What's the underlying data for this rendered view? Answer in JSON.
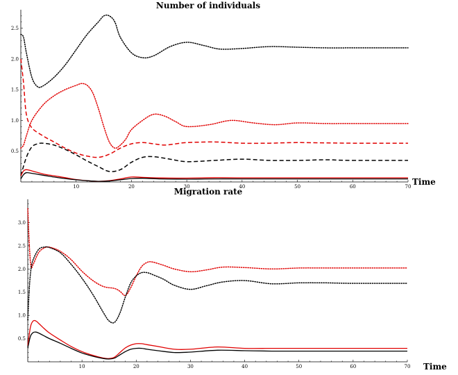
{
  "chart_data": [
    {
      "type": "line",
      "title": "Number of individuals",
      "xlabel": "Time",
      "ylabel": "",
      "xlim": [
        0,
        70
      ],
      "ylim": [
        0,
        2.8
      ],
      "x_ticks": [
        10,
        20,
        30,
        40,
        50,
        60,
        70
      ],
      "y_ticks": [
        0.5,
        1.0,
        1.5,
        2.0,
        2.5
      ],
      "x_tick_labels": [
        "10",
        "20",
        "30",
        "40",
        "50",
        "60",
        "70"
      ],
      "y_tick_labels": [
        "0.5",
        "1.0",
        "1.5",
        "2.0",
        "2.5"
      ],
      "grid": false,
      "series": [
        {
          "color": "#000000",
          "style": "dotted",
          "x": [
            0,
            0.5,
            1,
            2,
            3,
            4,
            6,
            8,
            10,
            12,
            14,
            15,
            16,
            17,
            18,
            20,
            22,
            24,
            27,
            30,
            33,
            36,
            40,
            45,
            50,
            55,
            60,
            65,
            70
          ],
          "y": [
            2.4,
            2.35,
            2.1,
            1.7,
            1.55,
            1.56,
            1.7,
            1.9,
            2.15,
            2.4,
            2.6,
            2.7,
            2.7,
            2.6,
            2.35,
            2.1,
            2.02,
            2.05,
            2.2,
            2.27,
            2.22,
            2.16,
            2.17,
            2.2,
            2.19,
            2.18,
            2.18,
            2.18,
            2.18
          ]
        },
        {
          "color": "#e00000",
          "style": "dotted",
          "x": [
            0,
            0.5,
            1,
            2,
            4,
            6,
            8,
            10,
            11,
            12,
            13,
            14,
            15,
            16,
            17,
            18,
            19,
            20,
            22,
            24,
            26,
            28,
            30,
            34,
            38,
            42,
            46,
            50,
            55,
            60,
            70
          ],
          "y": [
            0.55,
            0.6,
            0.75,
            1.0,
            1.25,
            1.4,
            1.5,
            1.57,
            1.6,
            1.57,
            1.45,
            1.2,
            0.9,
            0.65,
            0.55,
            0.6,
            0.7,
            0.85,
            1.0,
            1.1,
            1.07,
            0.98,
            0.9,
            0.93,
            1.0,
            0.96,
            0.93,
            0.96,
            0.95,
            0.95,
            0.95
          ]
        },
        {
          "color": "#e00000",
          "style": "dashed",
          "x": [
            0,
            0.5,
            1,
            2,
            4,
            6,
            8,
            10,
            12,
            14,
            16,
            18,
            20,
            22,
            24,
            26,
            28,
            30,
            35,
            40,
            45,
            50,
            60,
            70
          ],
          "y": [
            2.0,
            1.6,
            1.1,
            0.88,
            0.75,
            0.65,
            0.55,
            0.47,
            0.42,
            0.4,
            0.45,
            0.55,
            0.62,
            0.64,
            0.62,
            0.6,
            0.62,
            0.64,
            0.65,
            0.63,
            0.63,
            0.64,
            0.63,
            0.63
          ]
        },
        {
          "color": "#000000",
          "style": "dashed",
          "x": [
            0,
            1,
            2,
            3,
            4,
            6,
            8,
            10,
            12,
            14,
            16,
            18,
            20,
            22,
            24,
            27,
            30,
            35,
            40,
            45,
            50,
            55,
            60,
            70
          ],
          "y": [
            0.1,
            0.4,
            0.57,
            0.62,
            0.63,
            0.6,
            0.53,
            0.44,
            0.34,
            0.25,
            0.17,
            0.2,
            0.32,
            0.4,
            0.41,
            0.37,
            0.33,
            0.35,
            0.37,
            0.35,
            0.35,
            0.36,
            0.35,
            0.35
          ]
        },
        {
          "color": "#e00000",
          "style": "solid",
          "x": [
            0,
            0.5,
            1,
            2,
            4,
            6,
            8,
            10,
            12,
            14,
            16,
            18,
            20,
            22,
            25,
            30,
            35,
            40,
            50,
            60,
            70
          ],
          "y": [
            0.1,
            0.18,
            0.2,
            0.18,
            0.13,
            0.1,
            0.07,
            0.04,
            0.02,
            0.01,
            0.02,
            0.05,
            0.08,
            0.075,
            0.065,
            0.062,
            0.07,
            0.068,
            0.068,
            0.068,
            0.068
          ]
        },
        {
          "color": "#000000",
          "style": "solid",
          "x": [
            0,
            0.5,
            1,
            2,
            4,
            6,
            8,
            10,
            12,
            14,
            16,
            18,
            20,
            22,
            25,
            30,
            35,
            40,
            50,
            60,
            70
          ],
          "y": [
            0.05,
            0.12,
            0.15,
            0.14,
            0.11,
            0.08,
            0.055,
            0.035,
            0.02,
            0.01,
            0.015,
            0.035,
            0.055,
            0.06,
            0.05,
            0.045,
            0.05,
            0.05,
            0.05,
            0.05,
            0.05
          ]
        }
      ]
    },
    {
      "type": "line",
      "title": "Migration rate",
      "xlabel": "Time",
      "ylabel": "",
      "xlim": [
        0,
        70
      ],
      "ylim": [
        0,
        3.5
      ],
      "x_ticks": [
        10,
        20,
        30,
        40,
        50,
        60,
        70
      ],
      "y_ticks": [
        0.5,
        1.0,
        1.5,
        2.0,
        2.5,
        3.0
      ],
      "x_tick_labels": [
        "10",
        "20",
        "30",
        "40",
        "50",
        "60",
        "70"
      ],
      "y_tick_labels": [
        "0.5",
        "1.0",
        "1.5",
        "2.0",
        "2.5",
        "3.0"
      ],
      "grid": false,
      "series": [
        {
          "color": "#e00000",
          "style": "dotted",
          "x": [
            0,
            0.3,
            0.6,
            1,
            2,
            3,
            4,
            6,
            8,
            10,
            12,
            14,
            16,
            17,
            18,
            19,
            20,
            21,
            22,
            23,
            25,
            27,
            30,
            33,
            36,
            40,
            45,
            50,
            55,
            60,
            65,
            70
          ],
          "y": [
            3.3,
            2.5,
            2.05,
            2.1,
            2.35,
            2.45,
            2.47,
            2.38,
            2.2,
            1.95,
            1.75,
            1.62,
            1.58,
            1.52,
            1.43,
            1.6,
            1.85,
            2.05,
            2.14,
            2.15,
            2.08,
            2.0,
            1.94,
            1.98,
            2.04,
            2.03,
            2.0,
            2.02,
            2.02,
            2.02,
            2.02,
            2.02
          ]
        },
        {
          "color": "#000000",
          "style": "dotted",
          "x": [
            0,
            0.3,
            0.6,
            1,
            2,
            3,
            4,
            6,
            8,
            10,
            12,
            14,
            15,
            16,
            17,
            18,
            19,
            20,
            21,
            22,
            23,
            25,
            27,
            30,
            33,
            36,
            40,
            45,
            50,
            55,
            60,
            70
          ],
          "y": [
            0.9,
            1.6,
            2.0,
            2.2,
            2.42,
            2.47,
            2.46,
            2.35,
            2.1,
            1.8,
            1.45,
            1.05,
            0.88,
            0.85,
            1.05,
            1.4,
            1.7,
            1.85,
            1.92,
            1.92,
            1.88,
            1.78,
            1.65,
            1.56,
            1.64,
            1.72,
            1.75,
            1.68,
            1.7,
            1.7,
            1.69,
            1.69
          ]
        },
        {
          "color": "#e00000",
          "style": "solid",
          "x": [
            0,
            0.5,
            1,
            1.5,
            2,
            3,
            4,
            6,
            8,
            10,
            12,
            14,
            15,
            16,
            17,
            18,
            19,
            20,
            21,
            22,
            24,
            27,
            30,
            35,
            40,
            45,
            50,
            55,
            60,
            70
          ],
          "y": [
            0.35,
            0.75,
            0.88,
            0.88,
            0.83,
            0.72,
            0.62,
            0.47,
            0.33,
            0.22,
            0.14,
            0.08,
            0.07,
            0.1,
            0.2,
            0.3,
            0.36,
            0.39,
            0.39,
            0.37,
            0.33,
            0.27,
            0.27,
            0.32,
            0.29,
            0.29,
            0.29,
            0.29,
            0.29,
            0.29
          ]
        },
        {
          "color": "#000000",
          "style": "solid",
          "x": [
            0,
            0.5,
            1,
            1.5,
            2,
            3,
            4,
            6,
            8,
            10,
            12,
            14,
            15,
            16,
            17,
            18,
            19,
            20,
            21,
            22,
            24,
            27,
            30,
            35,
            40,
            45,
            50,
            55,
            60,
            70
          ],
          "y": [
            0.3,
            0.55,
            0.63,
            0.64,
            0.62,
            0.56,
            0.5,
            0.4,
            0.29,
            0.19,
            0.12,
            0.07,
            0.06,
            0.08,
            0.15,
            0.22,
            0.27,
            0.29,
            0.29,
            0.27,
            0.24,
            0.2,
            0.21,
            0.25,
            0.24,
            0.23,
            0.23,
            0.23,
            0.23,
            0.23
          ]
        }
      ]
    }
  ]
}
